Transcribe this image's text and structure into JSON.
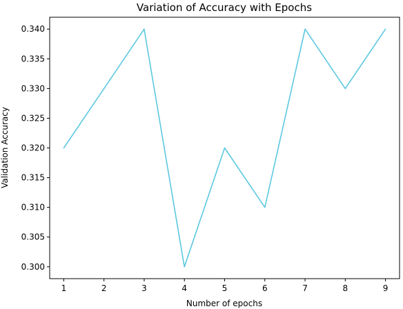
{
  "chart_data": {
    "type": "line",
    "title": "Variation of Accuracy with Epochs",
    "xlabel": "Number of epochs",
    "ylabel": "Validation Accuracy",
    "x": [
      1,
      2,
      3,
      4,
      5,
      6,
      7,
      8,
      9
    ],
    "series": [
      {
        "values": [
          0.32,
          0.33,
          0.34,
          0.3,
          0.32,
          0.31,
          0.34,
          0.33,
          0.34
        ],
        "color": "#5bc8e0"
      }
    ],
    "xticks": [
      "1",
      "2",
      "3",
      "4",
      "5",
      "6",
      "7",
      "8",
      "9"
    ],
    "yticks": [
      "0.300",
      "0.305",
      "0.310",
      "0.315",
      "0.320",
      "0.325",
      "0.330",
      "0.335",
      "0.340"
    ],
    "xlim": [
      0.65,
      9.35
    ],
    "ylim": [
      0.298,
      0.342
    ],
    "grid": false,
    "legend": "none"
  }
}
